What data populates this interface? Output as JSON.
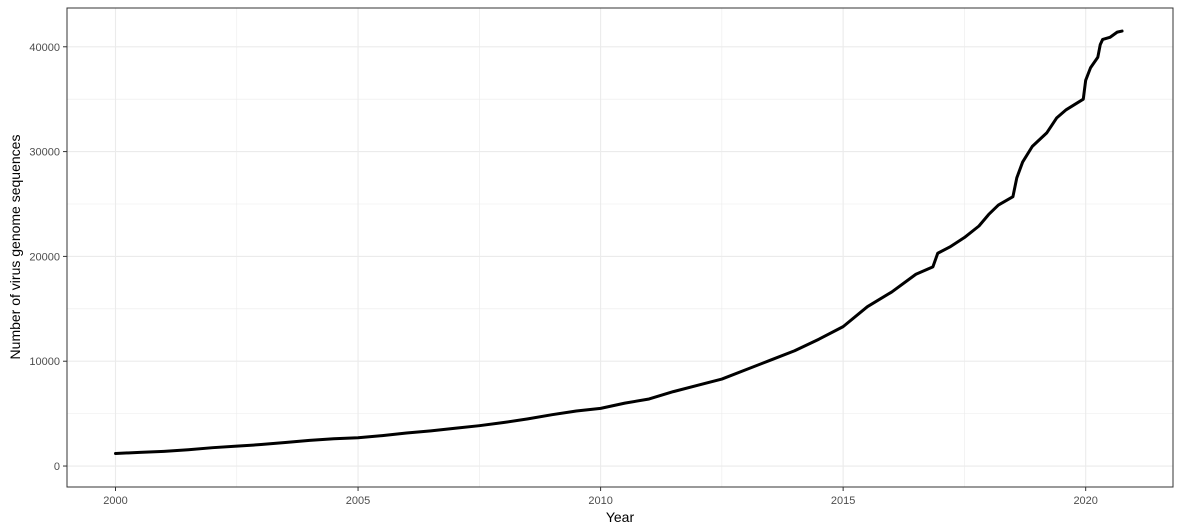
{
  "chart_data": {
    "type": "line",
    "title": "",
    "xlabel": "Year",
    "ylabel": "Number of virus genome sequences",
    "xlim": [
      1999.0,
      2021.8
    ],
    "ylim": [
      -2000,
      43700
    ],
    "x_ticks": [
      2000,
      2005,
      2010,
      2015,
      2020
    ],
    "y_ticks": [
      0,
      10000,
      20000,
      30000,
      40000
    ],
    "x_tick_labels": [
      "2000",
      "2005",
      "2010",
      "2015",
      "2020"
    ],
    "y_tick_labels": [
      "0",
      "10000",
      "20000",
      "30000",
      "40000"
    ],
    "grid": true,
    "legend": "none",
    "line_color": "#000000",
    "grid_color": "#ebebeb",
    "series": [
      {
        "x": [
          2000.0,
          2000.5,
          2001.0,
          2001.5,
          2002.0,
          2002.5,
          2003.0,
          2003.5,
          2004.0,
          2004.5,
          2005.0,
          2005.5,
          2006.0,
          2006.5,
          2007.0,
          2007.5,
          2008.0,
          2008.5,
          2009.0,
          2009.5,
          2010.0,
          2010.5,
          2011.0,
          2011.5,
          2012.0,
          2012.5,
          2013.0,
          2013.5,
          2014.0,
          2014.5,
          2015.0,
          2015.5,
          2016.0,
          2016.5,
          2016.85,
          2016.95,
          2017.2,
          2017.5,
          2017.8,
          2018.0,
          2018.2,
          2018.5,
          2018.58,
          2018.7,
          2018.9,
          2019.2,
          2019.4,
          2019.6,
          2019.95,
          2020.0,
          2020.1,
          2020.25,
          2020.3,
          2020.35,
          2020.5,
          2020.65,
          2020.75
        ],
        "values": [
          1200,
          1300,
          1400,
          1550,
          1750,
          1900,
          2050,
          2250,
          2450,
          2600,
          2700,
          2900,
          3150,
          3350,
          3600,
          3850,
          4150,
          4500,
          4900,
          5250,
          5500,
          6000,
          6400,
          7100,
          7700,
          8300,
          9200,
          10100,
          11000,
          12100,
          13300,
          15200,
          16600,
          18300,
          19000,
          20300,
          20900,
          21800,
          22900,
          24000,
          24900,
          25700,
          27500,
          29000,
          30500,
          31800,
          33200,
          34000,
          35000,
          36800,
          38000,
          39000,
          40200,
          40700,
          40900,
          41400,
          41500
        ]
      }
    ]
  }
}
